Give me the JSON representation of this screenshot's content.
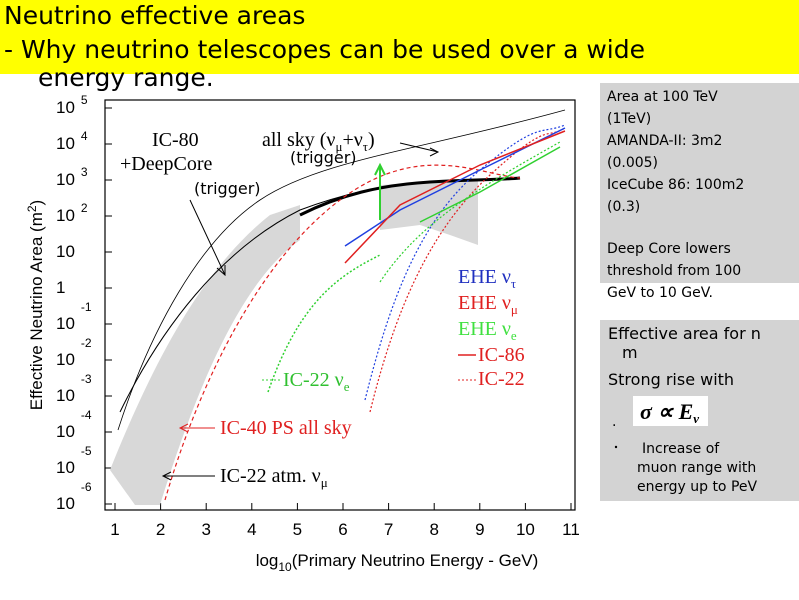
{
  "title_lines": [
    "Neutrino effective areas",
    "- Why neutrino telescopes can be used over a wide",
    "energy range."
  ],
  "figure": {
    "x_ticks": [
      1,
      2,
      3,
      4,
      5,
      6,
      7,
      8,
      9,
      10,
      11
    ],
    "y_ticks": [
      {
        "base": "10",
        "exp": "5"
      },
      {
        "base": "10",
        "exp": "4"
      },
      {
        "base": "10",
        "exp": "3"
      },
      {
        "base": "10",
        "exp": "2"
      },
      {
        "base": "10"
      },
      {
        "base": "1"
      },
      {
        "base": "10",
        "exp": "-1"
      },
      {
        "base": "10",
        "exp": "-2"
      },
      {
        "base": "10",
        "exp": "-3"
      },
      {
        "base": "10",
        "exp": "-4"
      },
      {
        "base": "10",
        "exp": "-5"
      },
      {
        "base": "10",
        "exp": "-6"
      }
    ],
    "y_label": [
      "Effective Neutrino Area (m",
      "2",
      ")"
    ],
    "x_label": [
      "log",
      "10",
      "(Primary Neutrino Energy - GeV)"
    ],
    "ic80": "IC-80",
    "deepcore": "+DeepCore",
    "trigger_1": "(trigger)",
    "all_sky": [
      "all sky (ν",
      "μ",
      "+ν",
      "τ",
      ")"
    ],
    "trigger_2": "(trigger)",
    "legend": [
      {
        "text": "EHE ν",
        "sub": "τ"
      },
      {
        "text": "EHE ν",
        "sub": "μ"
      },
      {
        "text": "EHE ν",
        "sub": "e"
      },
      {
        "text": "IC-86"
      },
      {
        "text": "IC-22"
      }
    ],
    "ic22_nue": [
      "IC-22 ν",
      "e"
    ],
    "ic40": "IC-40 PS all sky",
    "ic22_atm": [
      "IC-22 atm. ν",
      "μ"
    ]
  },
  "box1": {
    "para1": [
      "Area at 100 TeV",
      "(1TeV)",
      "AMANDA-II: 3m2",
      "(0.005)",
      "IceCube 86: 100m2",
      "(0.3)"
    ],
    "para2": [
      "Deep Core lowers",
      "threshold from 100",
      "GeV to 10 GeV."
    ]
  },
  "box2": {
    "lines": [
      "Effective area for n",
      "m",
      "Strong rise with"
    ],
    "dot": ".",
    "formula": [
      "σ ∝ E",
      "ν"
    ],
    "bullet": [
      "Increase of",
      "muon range with",
      "energy up to PeV"
    ]
  }
}
